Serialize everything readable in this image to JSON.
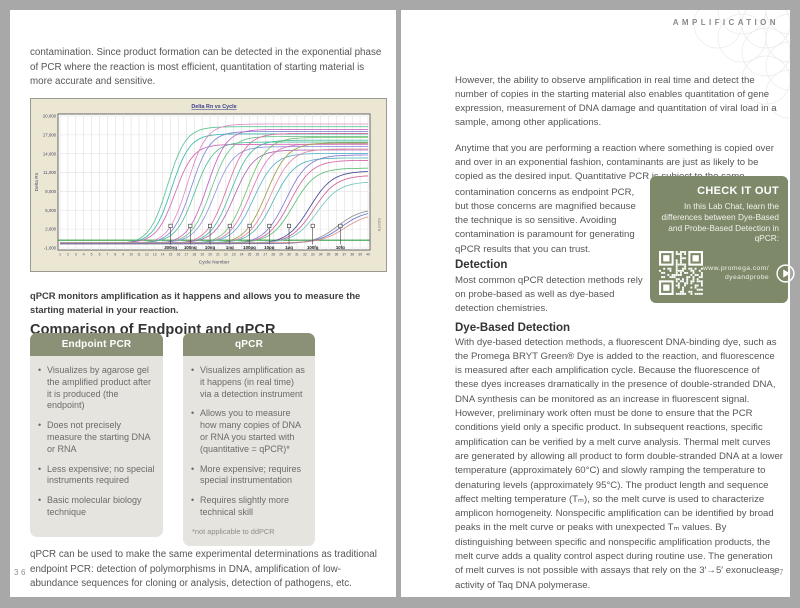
{
  "page_left": {
    "page_number": "36",
    "intro": "contamination. Since product formation can be detected in the exponential phase of PCR where the reaction is most efficient, quantitation of starting material is more accurate and sensitive.",
    "figure": {
      "caption": "qPCR monitors amplification as it happens and allows you to measure the starting material in your reaction.",
      "code": "6305TB"
    },
    "comparison": {
      "heading": "Comparison of Endpoint and qPCR",
      "endpoint": {
        "title": "Endpoint PCR",
        "bullets": [
          "Visualizes by agarose gel the amplified product after it is produced (the endpoint)",
          "Does not precisely measure the starting DNA or RNA",
          "Less expensive; no special instruments required",
          "Basic molecular biology technique"
        ]
      },
      "qpcr": {
        "title": "qPCR",
        "bullets": [
          "Visualizes amplification as it happens (in real time) via a detection instrument",
          "Allows you to measure how many copies of DNA or RNA you started with (quantitative = qPCR)*",
          "More expensive; requires special instrumentation",
          "Requires slightly more technical skill"
        ],
        "footnote": "*not applicable to ddPCR"
      }
    },
    "outro": "qPCR can be used to make the same experimental determinations as traditional endpoint PCR: detection of polymorphisms in DNA, amplification of low-abundance sequences for cloning or analysis, detection of pathogens, etc."
  },
  "page_right": {
    "page_number": "37",
    "header": "AMPLIFICATION",
    "p1": "However, the ability to observe amplification in real time and detect the number of copies in the starting material also enables quantitation of gene expression, measurement of DNA damage and quantitation of viral load in a sample, among other applications.",
    "p2a": "Anytime that you are performing a reaction where something is copied over and over in an exponential fashion, contaminants are just as likely to be copied as the desired input. Quantitative PCR is subject to the same",
    "p2b": "contamination concerns as endpoint PCR, but those concerns are magnified because the technique is so sensitive. Avoiding contamination is paramount for generating qPCR results that you can trust.",
    "checkout": {
      "title": "CHECK IT OUT",
      "body": "In this Lab Chat, learn the differences between Dye-Based and Probe-Based Detection in qPCR:",
      "url_line1": "www.promega.com/",
      "url_line2": "dyeandprobe"
    },
    "detection": {
      "heading": "Detection",
      "body": "Most common qPCR detection methods rely on probe-based as well as dye-based detection chemistries."
    },
    "dye": {
      "heading": "Dye-Based Detection",
      "body": "With dye-based detection methods, a fluorescent DNA-binding dye, such as the Promega BRYT Green® Dye is added to the reaction, and fluorescence is measured after each amplification cycle. Because the fluorescence of these dyes increases dramatically in the presence of double-stranded DNA, DNA synthesis can be monitored as an increase in fluorescent signal. However, preliminary work often must be done to ensure that the PCR conditions yield only a specific product. In subsequent reactions, specific amplification can be verified by a melt curve analysis. Thermal melt curves are generated by allowing all product to form double-stranded DNA at a lower temperature (approximately 60°C) and slowly ramping the temperature to denaturing levels (approximately 95°C). The product length and sequence affect melting temperature (Tₘ), so the melt curve is used to characterize amplicon homogeneity. Nonspecific amplification can be identified by broad peaks in the melt curve or peaks with unexpected Tₘ values. By distinguishing between specific and nonspecific amplification products, the melt curve adds a quality control aspect during routine use. The generation of melt curves is not possible with assays that rely on the 3′→5′ exonuclease activity of Taq DNA polymerase."
    }
  },
  "chart_data": {
    "type": "line",
    "title": "Delta Rn vs Cycle",
    "xlabel": "Cycle Number",
    "ylabel": "Delta Rn",
    "xlim": [
      1,
      40
    ],
    "ylim": [
      -1000,
      20000
    ],
    "ytick_step": 3000,
    "ytick_labels": [
      "20,000",
      "17,000",
      "14,000",
      "11,000",
      "8,000",
      "5,000",
      "2,000",
      "-1,000"
    ],
    "grid": true,
    "threshold_value": 250,
    "threshold_color": "#2f9e3f",
    "curves_per_series": 3,
    "series": [
      {
        "name": "300ng",
        "ct_cycle": 15,
        "plateau_delta_rn": 17400
      },
      {
        "name": "100ng",
        "ct_cycle": 17.5,
        "plateau_delta_rn": 17800
      },
      {
        "name": "10ng",
        "ct_cycle": 20,
        "plateau_delta_rn": 17000
      },
      {
        "name": "1ng",
        "ct_cycle": 22.5,
        "plateau_delta_rn": 16400
      },
      {
        "name": "100pg",
        "ct_cycle": 25,
        "plateau_delta_rn": 15800
      },
      {
        "name": "10pg",
        "ct_cycle": 27.5,
        "plateau_delta_rn": 15000
      },
      {
        "name": "1pg",
        "ct_cycle": 30,
        "plateau_delta_rn": 13200
      },
      {
        "name": "100fg",
        "ct_cycle": 33,
        "plateau_delta_rn": 10800
      },
      {
        "name": "10fg",
        "ct_cycle": 36.5,
        "plateau_delta_rn": 5200
      }
    ],
    "palette": [
      "#52c18e",
      "#2fb3a6",
      "#d45fb3",
      "#e287c2",
      "#7a86d4",
      "#49bd92",
      "#c45cc0",
      "#63c186",
      "#8d93dc",
      "#e0699e",
      "#41b89e",
      "#aa66a8",
      "#6fbf63",
      "#d873b6",
      "#52afc9",
      "#9a9a41",
      "#e083a0",
      "#4db0b0",
      "#7d74d0",
      "#cf5f9f",
      "#57b970",
      "#3b3f8f",
      "#c9598f",
      "#6fc3c0",
      "#8a8a8a",
      "#5a68c8",
      "#d98b8b"
    ]
  },
  "colors": {
    "comparison_header_green": "#8b9176",
    "comparison_body_gray": "#e5e4df",
    "checkout_green": "#7d8968",
    "frame_gray": "#a8a8a8",
    "chart_background_beige": "#ece7d3"
  }
}
